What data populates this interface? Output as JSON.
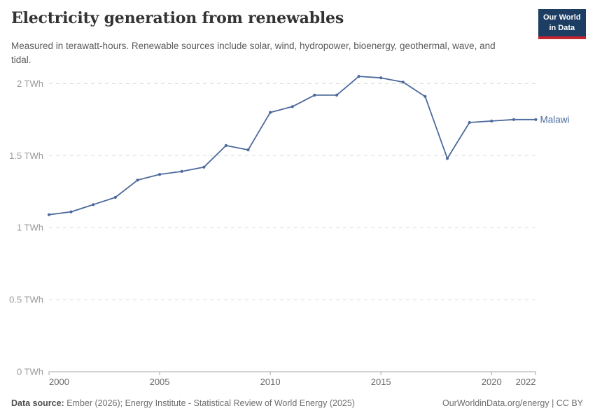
{
  "header": {
    "title": "Electricity generation from renewables",
    "subtitle": "Measured in terawatt-hours. Renewable sources include solar, wind, hydropower, bioenergy, geothermal, wave, and tidal.",
    "logo": {
      "line1": "Our World",
      "line2": "in Data",
      "bg_color": "#1D3D63",
      "bar_color": "#C5252C"
    }
  },
  "chart_data": {
    "type": "line",
    "title": "Electricity generation from renewables",
    "unit": "TWh",
    "x": [
      2000,
      2001,
      2002,
      2003,
      2004,
      2005,
      2006,
      2007,
      2008,
      2009,
      2010,
      2011,
      2012,
      2013,
      2014,
      2015,
      2016,
      2017,
      2018,
      2019,
      2020,
      2021,
      2022
    ],
    "series": [
      {
        "name": "Malawi",
        "color": "#4C6A9C",
        "values": [
          1.09,
          1.11,
          1.16,
          1.21,
          1.33,
          1.37,
          1.39,
          1.42,
          1.57,
          1.54,
          1.8,
          1.84,
          1.92,
          1.92,
          2.05,
          2.04,
          2.01,
          1.91,
          1.48,
          1.73,
          1.74,
          1.75,
          1.75
        ]
      }
    ],
    "xlim": [
      2000,
      2022
    ],
    "ylim": [
      0,
      2.12
    ],
    "y_ticks": [
      {
        "value": 0,
        "label": "0 TWh"
      },
      {
        "value": 0.5,
        "label": "0.5 TWh"
      },
      {
        "value": 1,
        "label": "1 TWh"
      },
      {
        "value": 1.5,
        "label": "1.5 TWh"
      },
      {
        "value": 2,
        "label": "2 TWh"
      }
    ],
    "x_ticks": [
      {
        "value": 2000,
        "label": "2000"
      },
      {
        "value": 2005,
        "label": "2005"
      },
      {
        "value": 2010,
        "label": "2010"
      },
      {
        "value": 2015,
        "label": "2015"
      },
      {
        "value": 2020,
        "label": "2020"
      },
      {
        "value": 2022,
        "label": "2022"
      }
    ],
    "grid": "horizontal-dashed",
    "legend_position": "end-of-line-label"
  },
  "footer": {
    "source_label": "Data source:",
    "source_text": " Ember (2026); Energy Institute - Statistical Review of World Energy (2025)",
    "credit": "OurWorldinData.org/energy | CC BY"
  },
  "colors": {
    "line": "#4C6A9C",
    "grid": "#DCDCDC",
    "axis": "#A5A5A5",
    "y_tick_text": "#999999",
    "x_tick_text": "#666666",
    "title_text": "#333333",
    "subtitle_text": "#5B5B5B",
    "footer_text": "#6E6E6E"
  }
}
